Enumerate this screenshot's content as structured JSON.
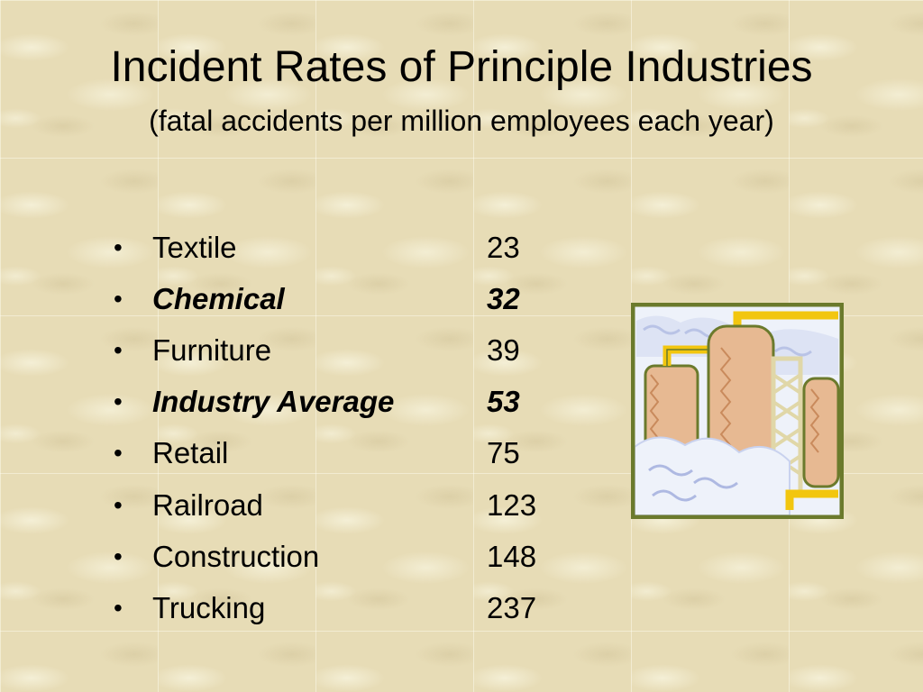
{
  "slide": {
    "title": "Incident Rates of Principle Industries",
    "subtitle": "(fatal accidents per million employees each year)"
  },
  "items": [
    {
      "bullet": "•",
      "label": "Textile",
      "value": "23",
      "emphasis": false
    },
    {
      "bullet": "•",
      "label": "Chemical",
      "value": "32",
      "emphasis": true
    },
    {
      "bullet": "•",
      "label": "Furniture",
      "value": "39",
      "emphasis": false
    },
    {
      "bullet": "•",
      "label": "Industry Average",
      "value": "53",
      "emphasis": true
    },
    {
      "bullet": "•",
      "label": "Retail",
      "value": "75",
      "emphasis": false
    },
    {
      "bullet": "•",
      "label": "Railroad",
      "value": "123",
      "emphasis": false
    },
    {
      "bullet": "•",
      "label": "Construction",
      "value": "148",
      "emphasis": false
    },
    {
      "bullet": "•",
      "label": "Trucking",
      "value": "237",
      "emphasis": false
    }
  ],
  "clipart": {
    "icon": "industrial-plant-icon"
  },
  "colors": {
    "background": "#e7dcb6",
    "frame": "#6b7a2c",
    "pipe": "#f2c60f",
    "tank": "#e7b992",
    "sky": "#eef2fa"
  }
}
